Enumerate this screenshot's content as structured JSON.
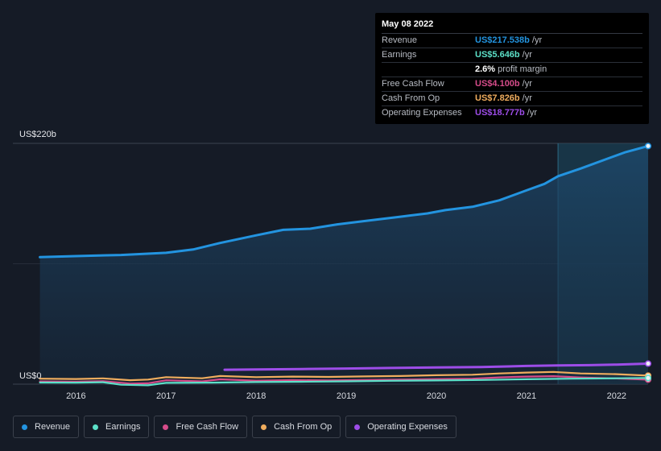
{
  "chart_data": {
    "type": "line",
    "x_unit": "year",
    "xlim": [
      2015.3,
      2022.35
    ],
    "ylim": [
      0,
      220
    ],
    "y_top_label": "US$220b",
    "y_bottom_label": "US$0",
    "x_ticks": [
      "2016",
      "2017",
      "2018",
      "2019",
      "2020",
      "2021",
      "2022"
    ],
    "forecast_start": 2021.35,
    "series": [
      {
        "name": "Revenue",
        "color": "#2394e0",
        "points": [
          [
            2015.6,
            116
          ],
          [
            2016.0,
            117
          ],
          [
            2016.5,
            118
          ],
          [
            2017.0,
            120
          ],
          [
            2017.3,
            123
          ],
          [
            2017.6,
            129
          ],
          [
            2018.0,
            136
          ],
          [
            2018.3,
            141
          ],
          [
            2018.6,
            142
          ],
          [
            2018.9,
            146
          ],
          [
            2019.2,
            149
          ],
          [
            2019.6,
            153
          ],
          [
            2019.9,
            156
          ],
          [
            2020.1,
            159
          ],
          [
            2020.4,
            162
          ],
          [
            2020.7,
            168
          ],
          [
            2021.0,
            177
          ],
          [
            2021.2,
            183
          ],
          [
            2021.35,
            190
          ],
          [
            2021.6,
            197
          ],
          [
            2021.9,
            206
          ],
          [
            2022.1,
            212
          ],
          [
            2022.35,
            217.538
          ]
        ]
      },
      {
        "name": "Earnings",
        "color": "#5ce0c8",
        "points": [
          [
            2015.6,
            1.5
          ],
          [
            2016.0,
            1.4
          ],
          [
            2016.3,
            1.8
          ],
          [
            2016.5,
            -0.5
          ],
          [
            2016.8,
            -1.0
          ],
          [
            2017.0,
            1.2
          ],
          [
            2017.5,
            1.4
          ],
          [
            2018.0,
            1.9
          ],
          [
            2018.5,
            2.2
          ],
          [
            2019.0,
            2.6
          ],
          [
            2019.5,
            3.1
          ],
          [
            2020.0,
            3.4
          ],
          [
            2020.5,
            3.8
          ],
          [
            2021.0,
            4.5
          ],
          [
            2021.5,
            5.0
          ],
          [
            2022.0,
            5.4
          ],
          [
            2022.35,
            5.646
          ]
        ]
      },
      {
        "name": "Free Cash Flow",
        "color": "#d64c8a",
        "points": [
          [
            2015.6,
            2.5
          ],
          [
            2016.0,
            2.2
          ],
          [
            2016.3,
            2.8
          ],
          [
            2016.6,
            0.5
          ],
          [
            2016.8,
            0.8
          ],
          [
            2017.0,
            3.5
          ],
          [
            2017.4,
            2.6
          ],
          [
            2017.6,
            4.4
          ],
          [
            2018.0,
            3.2
          ],
          [
            2018.4,
            3.7
          ],
          [
            2018.8,
            3.4
          ],
          [
            2019.2,
            3.8
          ],
          [
            2019.6,
            4.1
          ],
          [
            2020.0,
            4.6
          ],
          [
            2020.4,
            5.0
          ],
          [
            2020.7,
            6.2
          ],
          [
            2021.0,
            6.9
          ],
          [
            2021.3,
            7.3
          ],
          [
            2021.6,
            6.1
          ],
          [
            2022.0,
            5.2
          ],
          [
            2022.35,
            4.1
          ]
        ]
      },
      {
        "name": "Cash From Op",
        "color": "#f0ad5e",
        "points": [
          [
            2015.6,
            5
          ],
          [
            2016.0,
            4.7
          ],
          [
            2016.3,
            5.3
          ],
          [
            2016.6,
            3.6
          ],
          [
            2016.8,
            4.2
          ],
          [
            2017.0,
            6.4
          ],
          [
            2017.4,
            5.4
          ],
          [
            2017.6,
            7.4
          ],
          [
            2018.0,
            6.4
          ],
          [
            2018.4,
            6.9
          ],
          [
            2018.8,
            6.6
          ],
          [
            2019.2,
            7.1
          ],
          [
            2019.6,
            7.4
          ],
          [
            2020.0,
            8.2
          ],
          [
            2020.4,
            8.6
          ],
          [
            2020.7,
            9.8
          ],
          [
            2021.0,
            10.6
          ],
          [
            2021.3,
            11.2
          ],
          [
            2021.6,
            9.8
          ],
          [
            2022.0,
            9.1
          ],
          [
            2022.35,
            7.826
          ]
        ]
      },
      {
        "name": "Operating Expenses",
        "color": "#9d4de8",
        "points": [
          [
            2017.65,
            13.2
          ],
          [
            2018.0,
            13.5
          ],
          [
            2018.5,
            13.8
          ],
          [
            2019.0,
            14.3
          ],
          [
            2019.5,
            14.8
          ],
          [
            2020.0,
            15.2
          ],
          [
            2020.5,
            15.6
          ],
          [
            2021.0,
            16.6
          ],
          [
            2021.35,
            17.1
          ],
          [
            2021.7,
            17.4
          ],
          [
            2022.0,
            17.9
          ],
          [
            2022.35,
            18.777
          ]
        ]
      }
    ]
  },
  "tooltip": {
    "date": "May 08 2022",
    "rows": [
      {
        "label": "Revenue",
        "value": "US$217.538b",
        "unit": "/yr",
        "color": "#2394e0"
      },
      {
        "label": "Earnings",
        "value": "US$5.646b",
        "unit": "/yr",
        "color": "#5ce0c8"
      },
      {
        "label": "",
        "value": "2.6%",
        "unit": "profit margin",
        "color": "#ffffff"
      },
      {
        "label": "Free Cash Flow",
        "value": "US$4.100b",
        "unit": "/yr",
        "color": "#d64c8a"
      },
      {
        "label": "Cash From Op",
        "value": "US$7.826b",
        "unit": "/yr",
        "color": "#f0ad5e"
      },
      {
        "label": "Operating Expenses",
        "value": "US$18.777b",
        "unit": "/yr",
        "color": "#9d4de8"
      }
    ]
  },
  "legend": [
    {
      "label": "Revenue",
      "color": "#2394e0"
    },
    {
      "label": "Earnings",
      "color": "#5ce0c8"
    },
    {
      "label": "Free Cash Flow",
      "color": "#d64c8a"
    },
    {
      "label": "Cash From Op",
      "color": "#f0ad5e"
    },
    {
      "label": "Operating Expenses",
      "color": "#9d4de8"
    }
  ]
}
